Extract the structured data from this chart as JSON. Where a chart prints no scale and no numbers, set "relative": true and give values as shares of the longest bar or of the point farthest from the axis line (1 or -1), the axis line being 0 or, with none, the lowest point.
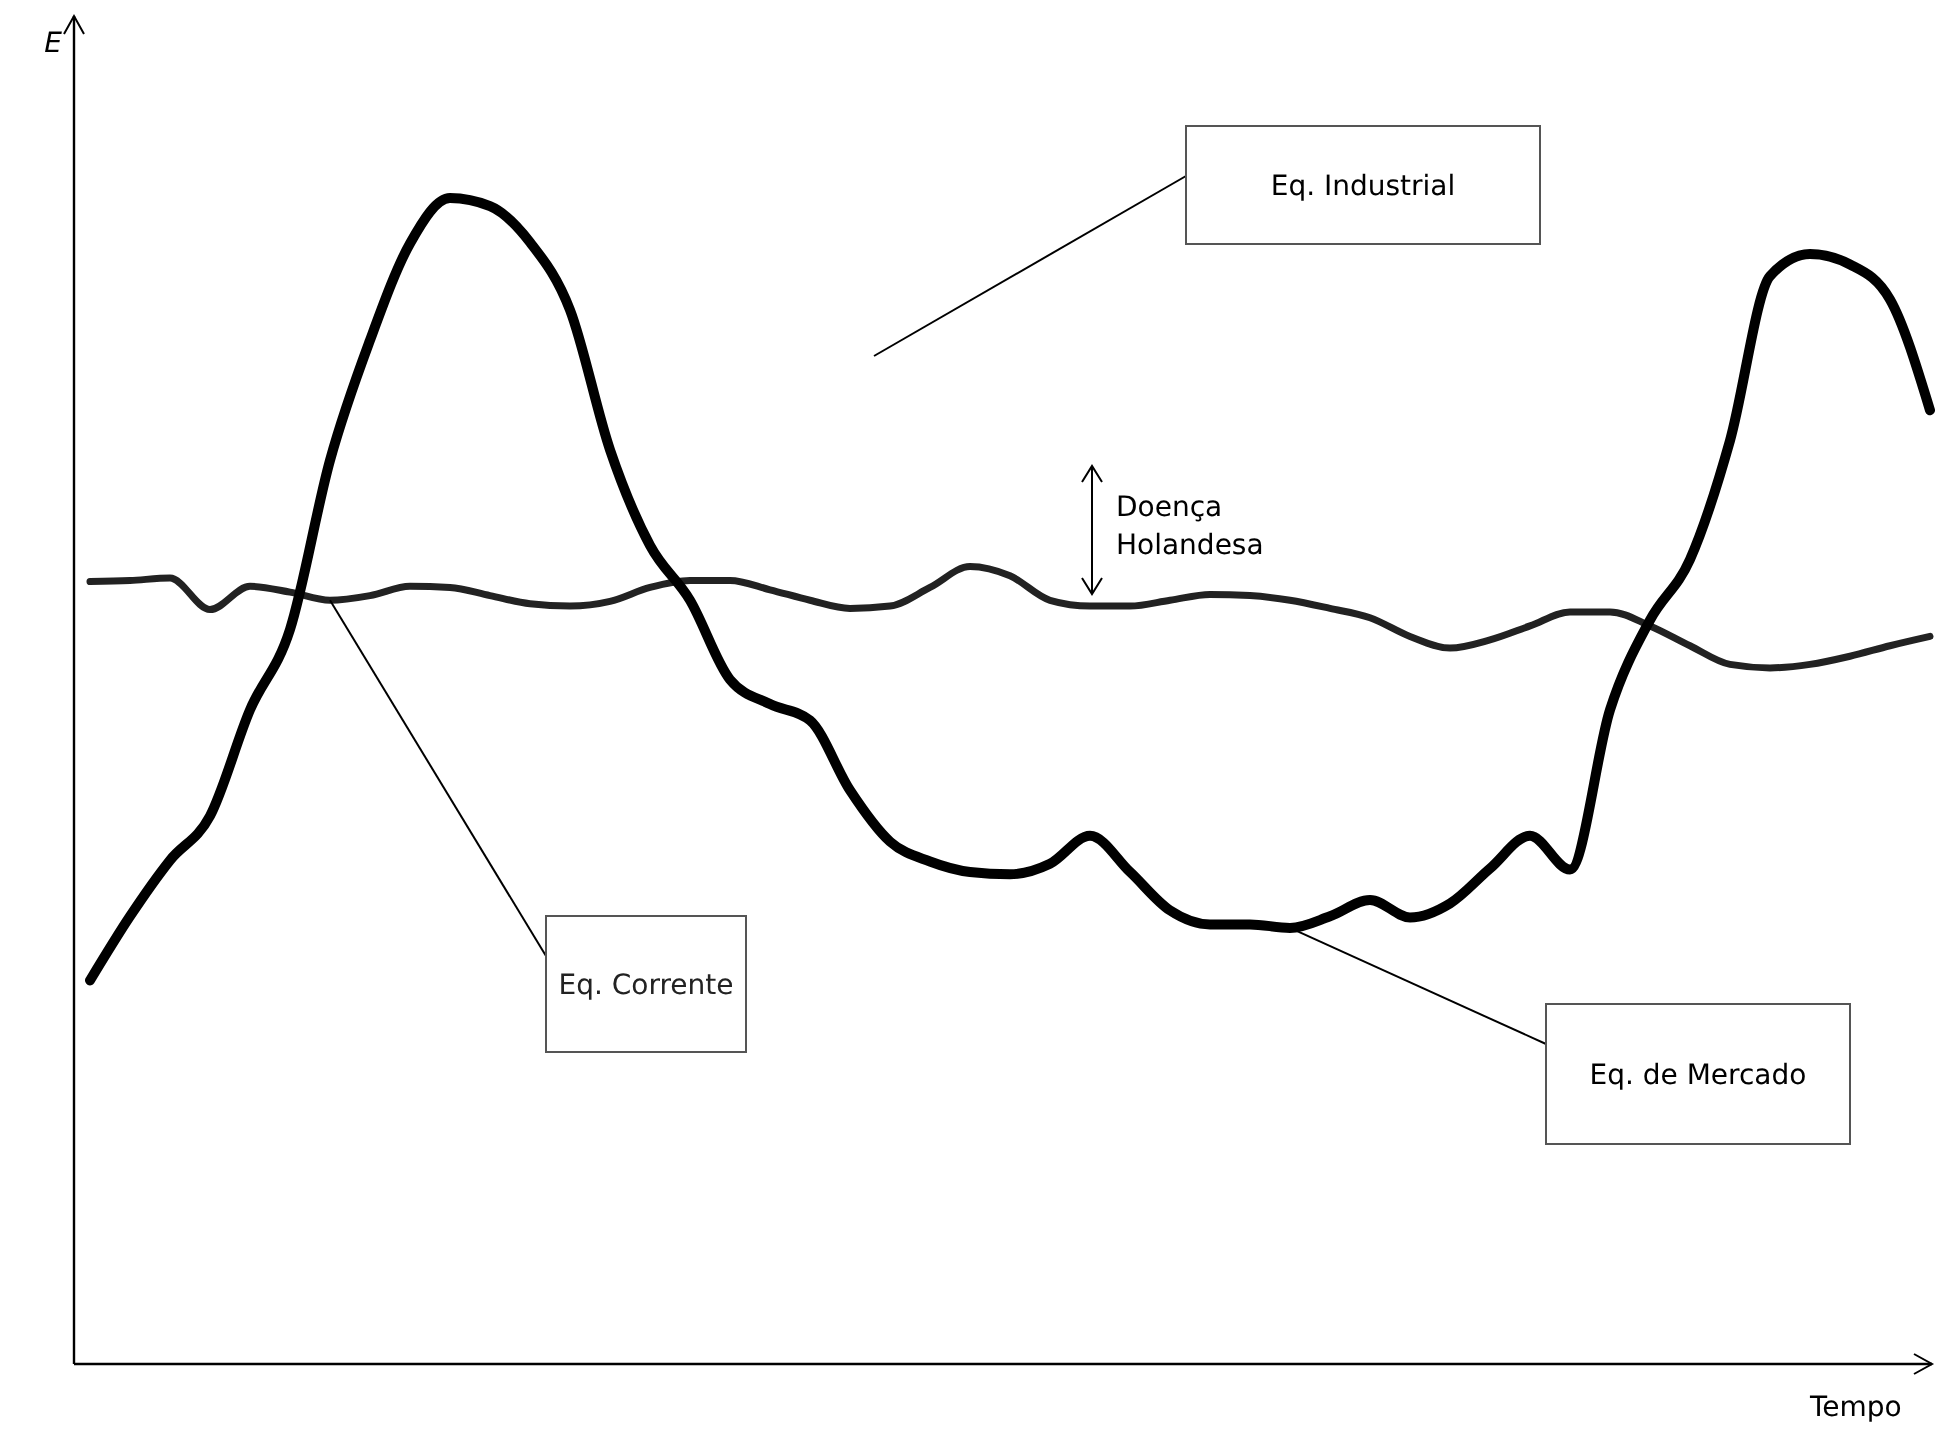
{
  "chart_data": {
    "type": "line",
    "relative": true,
    "xlabel": "Tempo",
    "ylabel": "E",
    "categories": [
      null,
      null,
      null,
      null,
      null,
      null,
      null,
      null,
      null,
      null,
      null,
      null,
      null,
      null,
      null,
      null,
      null,
      null,
      null,
      null,
      null,
      null,
      null,
      null,
      null,
      null,
      null,
      null,
      null,
      null,
      null,
      null,
      null,
      null,
      null,
      null,
      null,
      null,
      null,
      null,
      null,
      null,
      null,
      null,
      null,
      null,
      null
    ],
    "series": [
      {
        "name": "Eq. Corrente",
        "color": "#222222",
        "values": [
          0.671,
          0.672,
          0.674,
          0.647,
          0.667,
          0.662,
          0.655,
          0.659,
          0.667,
          0.666,
          0.659,
          0.652,
          0.65,
          0.654,
          0.666,
          0.672,
          0.672,
          0.664,
          0.655,
          0.648,
          0.65,
          0.666,
          0.684,
          0.676,
          0.655,
          0.65,
          0.65,
          0.655,
          0.66,
          0.659,
          0.655,
          0.648,
          0.64,
          0.624,
          0.614,
          0.621,
          0.633,
          0.645,
          0.645,
          0.633,
          0.616,
          0.6,
          0.597,
          0.6,
          0.607,
          0.616,
          0.624
        ]
      },
      {
        "name": "Eq. de Mercado",
        "color": "#000000",
        "values": [
          0.329,
          0.384,
          0.432,
          0.47,
          0.561,
          0.63,
          0.775,
          0.878,
          0.961,
          1,
          0.993,
          0.962,
          0.904,
          0.784,
          0.702,
          0.655,
          0.587,
          0.566,
          0.552,
          0.492,
          0.448,
          0.431,
          0.422,
          0.42,
          0.429,
          0.453,
          0.422,
          0.389,
          0.377,
          0.377,
          0.374,
          0.384,
          0.398,
          0.383,
          0.395,
          0.425,
          0.453,
          0.424,
          0.561,
          0.638,
          0.69,
          0.792,
          0.933,
          0.952,
          0.943,
          0.913,
          0.818
        ]
      }
    ],
    "annotations": [
      "Eq. Industrial",
      "Doença Holandesa"
    ],
    "legend": false
  }
}
